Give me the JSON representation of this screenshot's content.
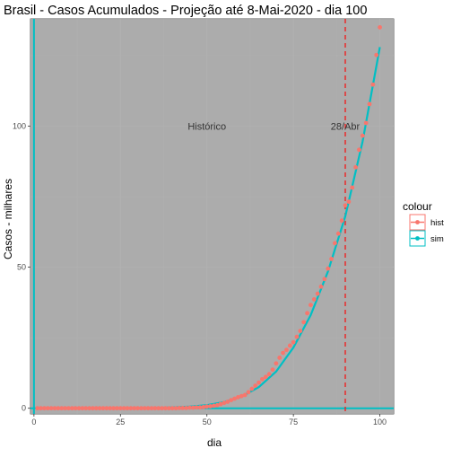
{
  "chart_data": {
    "type": "scatter",
    "title": "Brasil - Casos Acumulados - Projeção até 8-Mai-2020 - dia 100",
    "xlabel": "dia",
    "ylabel": "Casos - milhares",
    "xlim": [
      -1,
      104
    ],
    "ylim": [
      -2,
      138
    ],
    "x_ticks": [
      0,
      25,
      50,
      75,
      100
    ],
    "y_ticks": [
      0,
      50,
      100
    ],
    "grid": true,
    "panel_background": "#ababab",
    "vertical_reference": {
      "x": 90,
      "color": "#f8766d",
      "style": "dashed"
    },
    "annotations": [
      {
        "text": "Histórico",
        "x": 50,
        "y": 100
      },
      {
        "text": "28/Abr",
        "x": 90,
        "y": 100
      }
    ],
    "legend": {
      "title": "colour",
      "position": "right",
      "entries": [
        {
          "label": "hist",
          "color": "#f8766d"
        },
        {
          "label": "sim",
          "color": "#00bfc4"
        }
      ]
    },
    "series": [
      {
        "name": "hist",
        "kind": "points",
        "color": "#f8766d",
        "x": [
          1,
          2,
          3,
          4,
          5,
          6,
          7,
          8,
          9,
          10,
          11,
          12,
          13,
          14,
          15,
          16,
          17,
          18,
          19,
          20,
          21,
          22,
          23,
          24,
          25,
          26,
          27,
          28,
          29,
          30,
          31,
          32,
          33,
          34,
          35,
          36,
          37,
          38,
          39,
          40,
          41,
          42,
          43,
          44,
          45,
          46,
          47,
          48,
          49,
          50,
          51,
          52,
          53,
          54,
          55,
          56,
          57,
          58,
          59,
          60,
          61,
          62,
          63,
          64,
          65,
          66,
          67,
          68,
          69,
          70,
          71,
          72,
          73,
          74,
          75,
          76,
          77,
          78,
          79,
          80,
          81,
          82,
          83,
          84,
          85,
          86,
          87,
          88,
          89,
          90,
          91,
          92,
          93,
          94,
          95,
          96,
          97,
          98,
          99,
          100
        ],
        "y": [
          0.0,
          0.0,
          0.0,
          0.0,
          0.0,
          0.0,
          0.0,
          0.0,
          0.0,
          0.0,
          0.0,
          0.0,
          0.0,
          0.0,
          0.0,
          0.0,
          0.0,
          0.0,
          0.0,
          0.0,
          0.0,
          0.0,
          0.0,
          0.0,
          0.0,
          0.0,
          0.0,
          0.0,
          0.0,
          0.0,
          0.0,
          0.0,
          0.0,
          0.0,
          0.0,
          0.0,
          0.0,
          0.0,
          0.0,
          0.0,
          0.0,
          0.1,
          0.1,
          0.1,
          0.2,
          0.2,
          0.3,
          0.3,
          0.4,
          0.6,
          0.7,
          0.9,
          1.1,
          1.5,
          1.9,
          2.3,
          2.9,
          3.4,
          3.9,
          4.3,
          4.7,
          5.7,
          6.9,
          8.0,
          9.1,
          10.3,
          11.1,
          12.1,
          13.7,
          15.9,
          17.9,
          19.6,
          20.7,
          22.2,
          23.4,
          25.3,
          27.4,
          30.5,
          33.7,
          36.6,
          38.6,
          40.6,
          43.1,
          45.8,
          49.5,
          52.9,
          58.5,
          61.9,
          66.5,
          71.9,
          73.2,
          78.2,
          85.4,
          91.6,
          96.6,
          101.1,
          107.8,
          114.7,
          125.2,
          135.0
        ]
      },
      {
        "name": "sim",
        "kind": "line",
        "color": "#00bfc4",
        "x": [
          0,
          5,
          10,
          15,
          20,
          25,
          30,
          35,
          40,
          45,
          50,
          55,
          60,
          65,
          70,
          75,
          80,
          85,
          90,
          95,
          100
        ],
        "y": [
          0.0,
          0.0,
          0.0,
          0.0,
          0.0,
          0.0,
          0.0,
          0.1,
          0.3,
          0.6,
          1.1,
          2.2,
          4.1,
          7.5,
          13.0,
          21.5,
          33.0,
          48.5,
          68.0,
          94.5,
          128.0
        ]
      }
    ]
  }
}
